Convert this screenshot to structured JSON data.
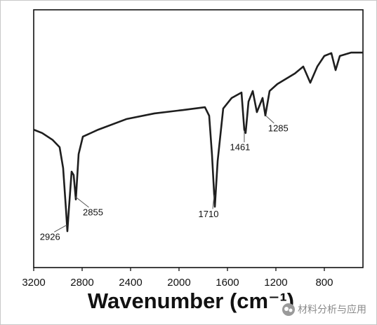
{
  "chart_data": {
    "type": "line",
    "xlabel": "Wavenumber (cm⁻¹)",
    "x": [
      3200,
      3130,
      3043,
      2986,
      2957,
      2933,
      2922,
      2910,
      2887,
      2870,
      2852,
      2829,
      2794,
      2667,
      2435,
      2203,
      1971,
      1786,
      1751,
      1728,
      1704,
      1681,
      1635,
      1565,
      1484,
      1461,
      1450,
      1426,
      1391,
      1357,
      1310,
      1287,
      1252,
      1188,
      1043,
      974,
      916,
      858,
      800,
      742,
      707,
      672,
      580,
      481
    ],
    "values": [
      53.5,
      52.2,
      49.5,
      46.7,
      38.6,
      22.3,
      14.1,
      22.3,
      37.2,
      35.9,
      26.4,
      44.0,
      50.8,
      53.5,
      57.6,
      59.8,
      61.1,
      62.2,
      58.9,
      44.0,
      23.6,
      41.3,
      61.7,
      65.8,
      67.9,
      53.5,
      52.2,
      64.4,
      68.5,
      60.3,
      65.8,
      59.0,
      68.5,
      71.2,
      75.3,
      78.0,
      71.7,
      78.0,
      82.1,
      83.2,
      76.6,
      82.1,
      83.4,
      83.4
    ],
    "color": "#1e1e1e",
    "xlim": [
      3200,
      481
    ],
    "xticks": [
      3200,
      2800,
      2400,
      2000,
      1600,
      1200,
      800
    ],
    "ylim": [
      0,
      100
    ],
    "annotations": [
      {
        "text": "2926",
        "x": 2926
      },
      {
        "text": "2855",
        "x": 2855
      },
      {
        "text": "1710",
        "x": 1710
      },
      {
        "text": "1461",
        "x": 1461
      },
      {
        "text": "1285",
        "x": 1285
      }
    ]
  },
  "watermark": "材料分析与应用"
}
